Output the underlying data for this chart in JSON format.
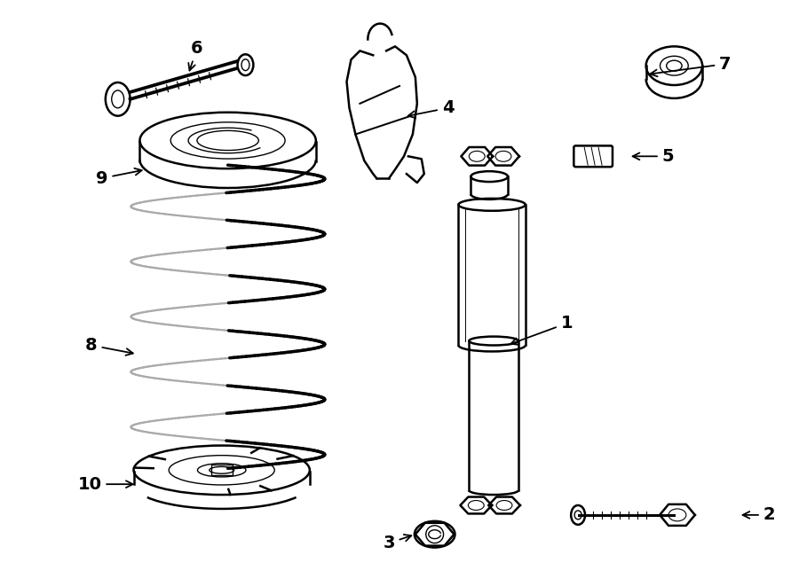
{
  "bg_color": "#ffffff",
  "line_color": "#000000",
  "lw": 1.8,
  "tlw": 1.0,
  "fs": 14,
  "figsize": [
    9.0,
    6.61
  ],
  "dpi": 100
}
